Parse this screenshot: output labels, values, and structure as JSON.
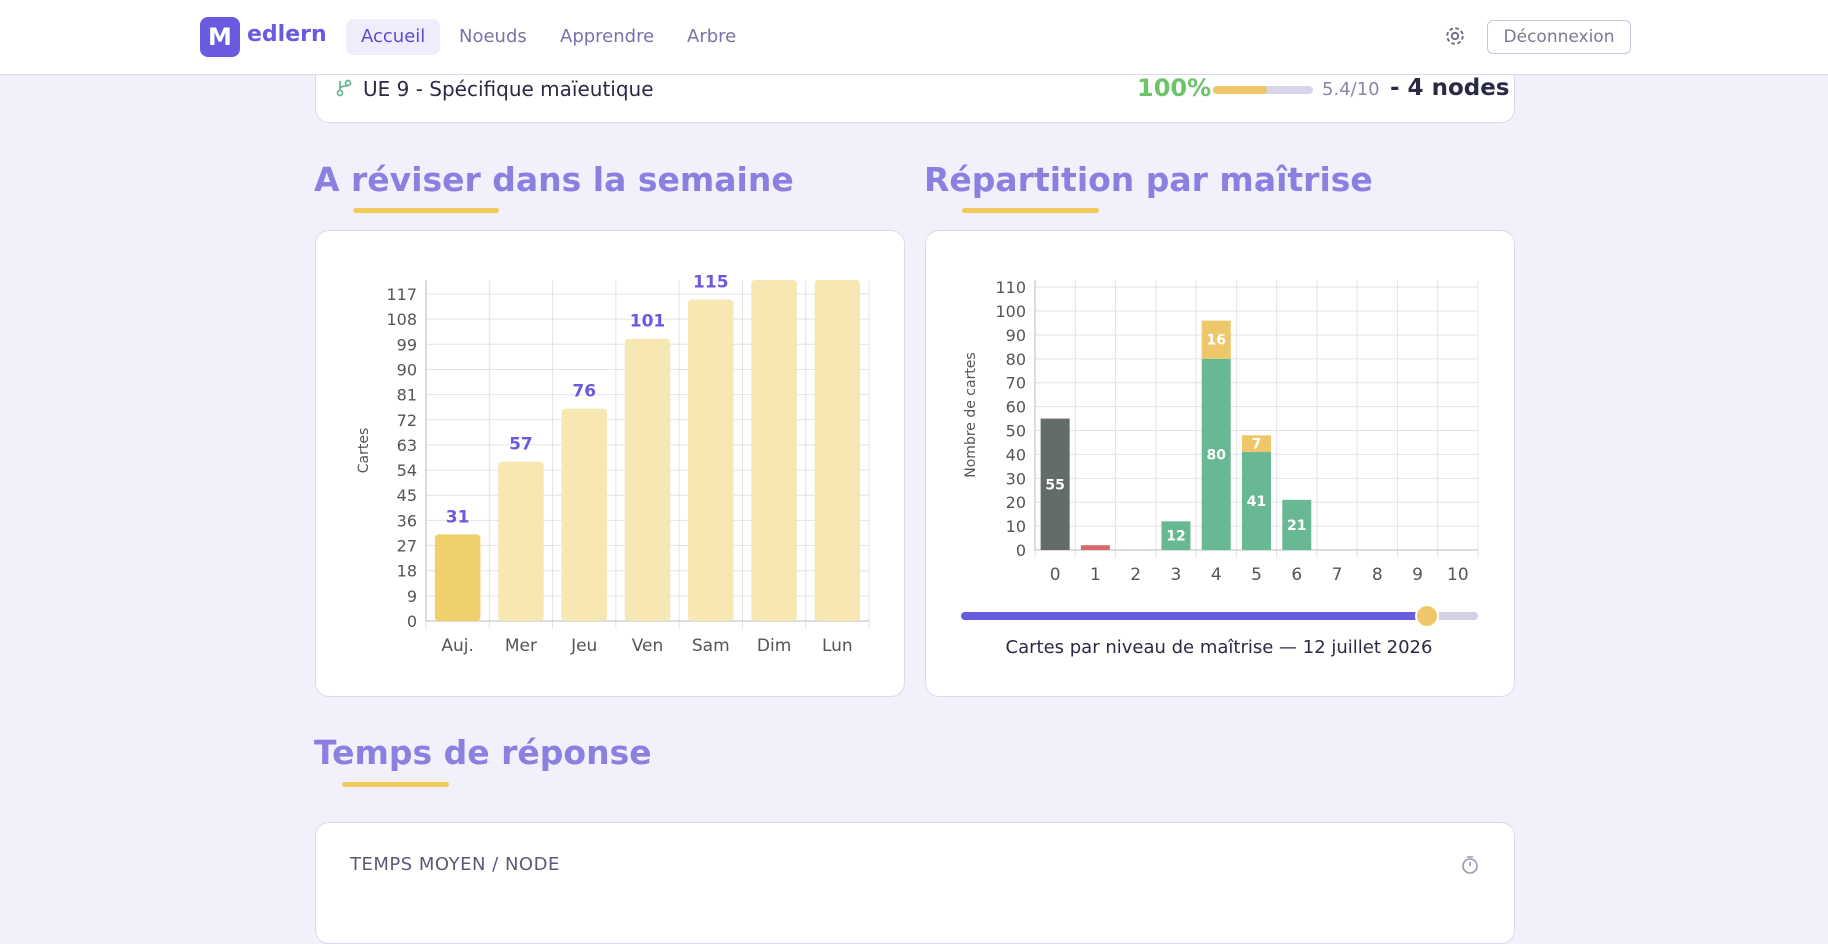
{
  "nav": {
    "logo": "M",
    "brand": "edlern",
    "links": [
      "Accueil",
      "Noeuds",
      "Apprendre",
      "Arbre"
    ],
    "logout": "Déconnexion"
  },
  "topic": {
    "name": "UE 9 - Spécifique maïeutique",
    "percent": "100%",
    "score": "5.4/10",
    "nodes": "- 4 nodes"
  },
  "sections": [
    "A réviser dans la semaine",
    "Répartition par maîtrise",
    "Temps de réponse"
  ],
  "card_title": "TEMPS MOYEN / NODE",
  "chart_data": [
    {
      "type": "bar",
      "y_label": "Cartes",
      "categories": [
        "Auj.",
        "Mer",
        "Jeu",
        "Ven",
        "Sam",
        "Dim",
        "Lun"
      ],
      "values": [
        31,
        57,
        76,
        101,
        115,
        122,
        122
      ],
      "colors": [
        "#f0d06a",
        "#f7e7b2",
        "#f7e7b2",
        "#f7e7b2",
        "#f7e7b2",
        "#f7e7b2",
        "#f7e7b2"
      ],
      "ylim": [
        0,
        122
      ],
      "yticks": [
        0,
        9,
        18,
        27,
        36,
        45,
        54,
        63,
        72,
        81,
        90,
        99,
        108,
        117
      ],
      "grid": true
    },
    {
      "type": "stacked_bar",
      "y_label": "Nombre de cartes",
      "caption": "Cartes par niveau de maîtrise — 12 juillet 2026",
      "categories": [
        "0",
        "1",
        "2",
        "3",
        "4",
        "5",
        "6",
        "7",
        "8",
        "9",
        "10"
      ],
      "series": [
        {
          "color": "#636b6b",
          "values": [
            55,
            null,
            null,
            null,
            null,
            null,
            null,
            null,
            null,
            null,
            null
          ]
        },
        {
          "color": "#d9686a",
          "values": [
            null,
            2,
            null,
            null,
            null,
            null,
            null,
            null,
            null,
            null,
            null
          ]
        },
        {
          "color": "#68b894",
          "values": [
            null,
            null,
            null,
            12,
            80,
            41,
            21,
            null,
            null,
            null,
            null
          ]
        },
        {
          "color": "#eec76a",
          "values": [
            null,
            null,
            null,
            null,
            16,
            7,
            null,
            null,
            null,
            null,
            null
          ]
        }
      ],
      "ylim": [
        0,
        113
      ],
      "yticks": [
        0,
        10,
        20,
        30,
        40,
        50,
        60,
        70,
        80,
        90,
        100,
        110
      ],
      "grid": true
    }
  ]
}
